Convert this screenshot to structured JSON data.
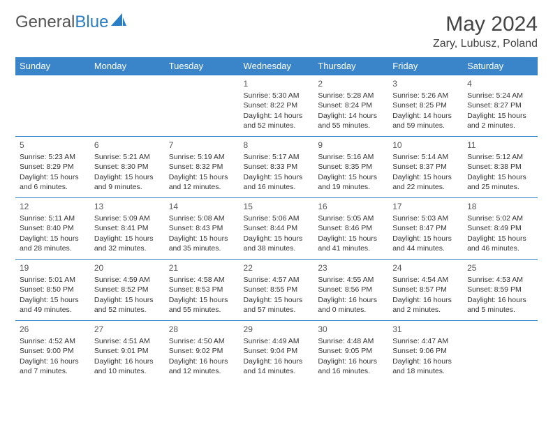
{
  "brand": {
    "part1": "General",
    "part2": "Blue"
  },
  "title": "May 2024",
  "location": "Zary, Lubusz, Poland",
  "colors": {
    "header_bg": "#3a85c9",
    "border": "#2a7ec6",
    "brand_gray": "#555555",
    "brand_blue": "#2a7ec6"
  },
  "weekdays": [
    "Sunday",
    "Monday",
    "Tuesday",
    "Wednesday",
    "Thursday",
    "Friday",
    "Saturday"
  ],
  "weeks": [
    [
      null,
      null,
      null,
      {
        "n": "1",
        "sr": "Sunrise: 5:30 AM",
        "ss": "Sunset: 8:22 PM",
        "dl": "Daylight: 14 hours and 52 minutes."
      },
      {
        "n": "2",
        "sr": "Sunrise: 5:28 AM",
        "ss": "Sunset: 8:24 PM",
        "dl": "Daylight: 14 hours and 55 minutes."
      },
      {
        "n": "3",
        "sr": "Sunrise: 5:26 AM",
        "ss": "Sunset: 8:25 PM",
        "dl": "Daylight: 14 hours and 59 minutes."
      },
      {
        "n": "4",
        "sr": "Sunrise: 5:24 AM",
        "ss": "Sunset: 8:27 PM",
        "dl": "Daylight: 15 hours and 2 minutes."
      }
    ],
    [
      {
        "n": "5",
        "sr": "Sunrise: 5:23 AM",
        "ss": "Sunset: 8:29 PM",
        "dl": "Daylight: 15 hours and 6 minutes."
      },
      {
        "n": "6",
        "sr": "Sunrise: 5:21 AM",
        "ss": "Sunset: 8:30 PM",
        "dl": "Daylight: 15 hours and 9 minutes."
      },
      {
        "n": "7",
        "sr": "Sunrise: 5:19 AM",
        "ss": "Sunset: 8:32 PM",
        "dl": "Daylight: 15 hours and 12 minutes."
      },
      {
        "n": "8",
        "sr": "Sunrise: 5:17 AM",
        "ss": "Sunset: 8:33 PM",
        "dl": "Daylight: 15 hours and 16 minutes."
      },
      {
        "n": "9",
        "sr": "Sunrise: 5:16 AM",
        "ss": "Sunset: 8:35 PM",
        "dl": "Daylight: 15 hours and 19 minutes."
      },
      {
        "n": "10",
        "sr": "Sunrise: 5:14 AM",
        "ss": "Sunset: 8:37 PM",
        "dl": "Daylight: 15 hours and 22 minutes."
      },
      {
        "n": "11",
        "sr": "Sunrise: 5:12 AM",
        "ss": "Sunset: 8:38 PM",
        "dl": "Daylight: 15 hours and 25 minutes."
      }
    ],
    [
      {
        "n": "12",
        "sr": "Sunrise: 5:11 AM",
        "ss": "Sunset: 8:40 PM",
        "dl": "Daylight: 15 hours and 28 minutes."
      },
      {
        "n": "13",
        "sr": "Sunrise: 5:09 AM",
        "ss": "Sunset: 8:41 PM",
        "dl": "Daylight: 15 hours and 32 minutes."
      },
      {
        "n": "14",
        "sr": "Sunrise: 5:08 AM",
        "ss": "Sunset: 8:43 PM",
        "dl": "Daylight: 15 hours and 35 minutes."
      },
      {
        "n": "15",
        "sr": "Sunrise: 5:06 AM",
        "ss": "Sunset: 8:44 PM",
        "dl": "Daylight: 15 hours and 38 minutes."
      },
      {
        "n": "16",
        "sr": "Sunrise: 5:05 AM",
        "ss": "Sunset: 8:46 PM",
        "dl": "Daylight: 15 hours and 41 minutes."
      },
      {
        "n": "17",
        "sr": "Sunrise: 5:03 AM",
        "ss": "Sunset: 8:47 PM",
        "dl": "Daylight: 15 hours and 44 minutes."
      },
      {
        "n": "18",
        "sr": "Sunrise: 5:02 AM",
        "ss": "Sunset: 8:49 PM",
        "dl": "Daylight: 15 hours and 46 minutes."
      }
    ],
    [
      {
        "n": "19",
        "sr": "Sunrise: 5:01 AM",
        "ss": "Sunset: 8:50 PM",
        "dl": "Daylight: 15 hours and 49 minutes."
      },
      {
        "n": "20",
        "sr": "Sunrise: 4:59 AM",
        "ss": "Sunset: 8:52 PM",
        "dl": "Daylight: 15 hours and 52 minutes."
      },
      {
        "n": "21",
        "sr": "Sunrise: 4:58 AM",
        "ss": "Sunset: 8:53 PM",
        "dl": "Daylight: 15 hours and 55 minutes."
      },
      {
        "n": "22",
        "sr": "Sunrise: 4:57 AM",
        "ss": "Sunset: 8:55 PM",
        "dl": "Daylight: 15 hours and 57 minutes."
      },
      {
        "n": "23",
        "sr": "Sunrise: 4:55 AM",
        "ss": "Sunset: 8:56 PM",
        "dl": "Daylight: 16 hours and 0 minutes."
      },
      {
        "n": "24",
        "sr": "Sunrise: 4:54 AM",
        "ss": "Sunset: 8:57 PM",
        "dl": "Daylight: 16 hours and 2 minutes."
      },
      {
        "n": "25",
        "sr": "Sunrise: 4:53 AM",
        "ss": "Sunset: 8:59 PM",
        "dl": "Daylight: 16 hours and 5 minutes."
      }
    ],
    [
      {
        "n": "26",
        "sr": "Sunrise: 4:52 AM",
        "ss": "Sunset: 9:00 PM",
        "dl": "Daylight: 16 hours and 7 minutes."
      },
      {
        "n": "27",
        "sr": "Sunrise: 4:51 AM",
        "ss": "Sunset: 9:01 PM",
        "dl": "Daylight: 16 hours and 10 minutes."
      },
      {
        "n": "28",
        "sr": "Sunrise: 4:50 AM",
        "ss": "Sunset: 9:02 PM",
        "dl": "Daylight: 16 hours and 12 minutes."
      },
      {
        "n": "29",
        "sr": "Sunrise: 4:49 AM",
        "ss": "Sunset: 9:04 PM",
        "dl": "Daylight: 16 hours and 14 minutes."
      },
      {
        "n": "30",
        "sr": "Sunrise: 4:48 AM",
        "ss": "Sunset: 9:05 PM",
        "dl": "Daylight: 16 hours and 16 minutes."
      },
      {
        "n": "31",
        "sr": "Sunrise: 4:47 AM",
        "ss": "Sunset: 9:06 PM",
        "dl": "Daylight: 16 hours and 18 minutes."
      },
      null
    ]
  ]
}
